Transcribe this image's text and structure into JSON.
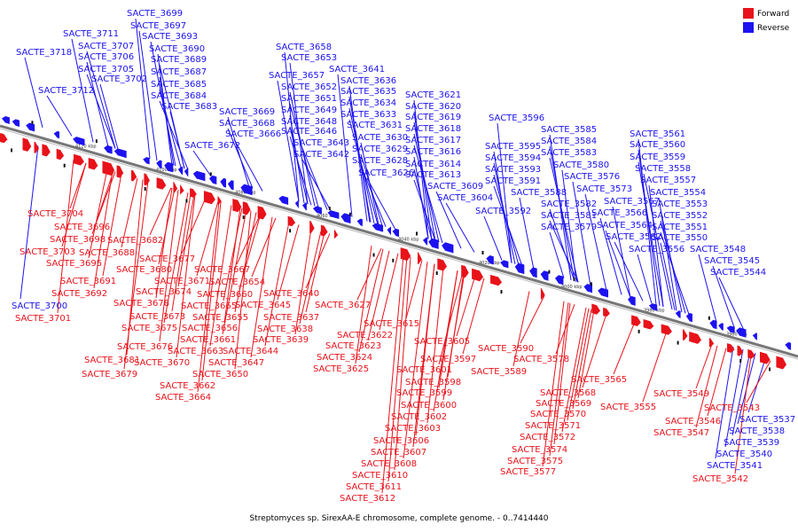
{
  "caption": "Streptomyces sp. SirexAA-E chromosome, complete genome. - 0..7414440",
  "colors": {
    "forward": "#e8121a",
    "reverse": "#1c12f0",
    "backbone": "#777777"
  },
  "legend": {
    "forward": "Forward",
    "reverse": "Reverse"
  },
  "ticks": [
    "4120 kbp",
    "4100 kbp",
    "4080 kbp",
    "4060 kbp",
    "4040 kbp",
    "4020 kbp",
    "4000 kbp",
    "3980 kbp",
    "3960 kbp"
  ],
  "reverse_labels": [
    "SACTE_3699",
    "SACTE_3697",
    "SACTE_3711",
    "SACTE_3693",
    "SACTE_3707",
    "SACTE_3690",
    "SACTE_3718",
    "SACTE_3706",
    "SACTE_3689",
    "SACTE_3705",
    "SACTE_3687",
    "SACTE_3702",
    "SACTE_3685",
    "SACTE_3712",
    "SACTE_3684",
    "SACTE_3683",
    "SACTE_3672",
    "SACTE_3669",
    "SACTE_3668",
    "SACTE_3666",
    "SACTE_3658",
    "SACTE_3653",
    "SACTE_3657",
    "SACTE_3652",
    "SACTE_3651",
    "SACTE_3649",
    "SACTE_3648",
    "SACTE_3646",
    "SACTE_3643",
    "SACTE_3642",
    "SACTE_3641",
    "SACTE_3636",
    "SACTE_3635",
    "SACTE_3634",
    "SACTE_3633",
    "SACTE_3631",
    "SACTE_3630",
    "SACTE_3629",
    "SACTE_3628",
    "SACTE_3626",
    "SACTE_3621",
    "SACTE_3620",
    "SACTE_3619",
    "SACTE_3618",
    "SACTE_3617",
    "SACTE_3616",
    "SACTE_3614",
    "SACTE_3613",
    "SACTE_3609",
    "SACTE_3604",
    "SACTE_3596",
    "SACTE_3595",
    "SACTE_3594",
    "SACTE_3593",
    "SACTE_3591",
    "SACTE_3588",
    "SACTE_3592",
    "SACTE_3585",
    "SACTE_3584",
    "SACTE_3583",
    "SACTE_3580",
    "SACTE_3576",
    "SACTE_3573",
    "SACTE_3582",
    "SACTE_3581",
    "SACTE_3579",
    "SACTE_3567",
    "SACTE_3566",
    "SACTE_3564",
    "SACTE_3562",
    "SACTE_3556",
    "SACTE_3561",
    "SACTE_3560",
    "SACTE_3559",
    "SACTE_3558",
    "SACTE_3557",
    "SACTE_3554",
    "SACTE_3553",
    "SACTE_3552",
    "SACTE_3551",
    "SACTE_3550",
    "SACTE_3548",
    "SACTE_3545",
    "SACTE_3544",
    "SACTE_3537",
    "SACTE_3538",
    "SACTE_3539",
    "SACTE_3540",
    "SACTE_3541",
    "SACTE_3700"
  ],
  "forward_labels": [
    "SACTE_3704",
    "SACTE_3696",
    "SACTE_3698",
    "SACTE_3703",
    "SACTE_3688",
    "SACTE_3695",
    "SACTE_3682",
    "SACTE_3677",
    "SACTE_3680",
    "SACTE_3691",
    "SACTE_3671",
    "SACTE_3667",
    "SACTE_3674",
    "SACTE_3692",
    "SACTE_3660",
    "SACTE_3654",
    "SACTE_3678",
    "SACTE_3665",
    "SACTE_3645",
    "SACTE_3640",
    "SACTE_3701",
    "SACTE_3673",
    "SACTE_3655",
    "SACTE_3675",
    "SACTE_3656",
    "SACTE_3637",
    "SACTE_3638",
    "SACTE_3661",
    "SACTE_3639",
    "SACTE_3676",
    "SACTE_3663",
    "SACTE_3644",
    "SACTE_3681",
    "SACTE_3670",
    "SACTE_3647",
    "SACTE_3679",
    "SACTE_3650",
    "SACTE_3662",
    "SACTE_3664",
    "SACTE_3627",
    "SACTE_3615",
    "SACTE_3622",
    "SACTE_3623",
    "SACTE_3624",
    "SACTE_3625",
    "SACTE_3605",
    "SACTE_3597",
    "SACTE_3601",
    "SACTE_3598",
    "SACTE_3599",
    "SACTE_3600",
    "SACTE_3602",
    "SACTE_3603",
    "SACTE_3606",
    "SACTE_3607",
    "SACTE_3608",
    "SACTE_3610",
    "SACTE_3611",
    "SACTE_3612",
    "SACTE_3590",
    "SACTE_3589",
    "SACTE_3578",
    "SACTE_3565",
    "SACTE_3568",
    "SACTE_3569",
    "SACTE_3570",
    "SACTE_3571",
    "SACTE_3572",
    "SACTE_3574",
    "SACTE_3575",
    "SACTE_3577",
    "SACTE_3555",
    "SACTE_3549",
    "SACTE_3546",
    "SACTE_3547",
    "SACTE_3543",
    "SACTE_3542"
  ]
}
